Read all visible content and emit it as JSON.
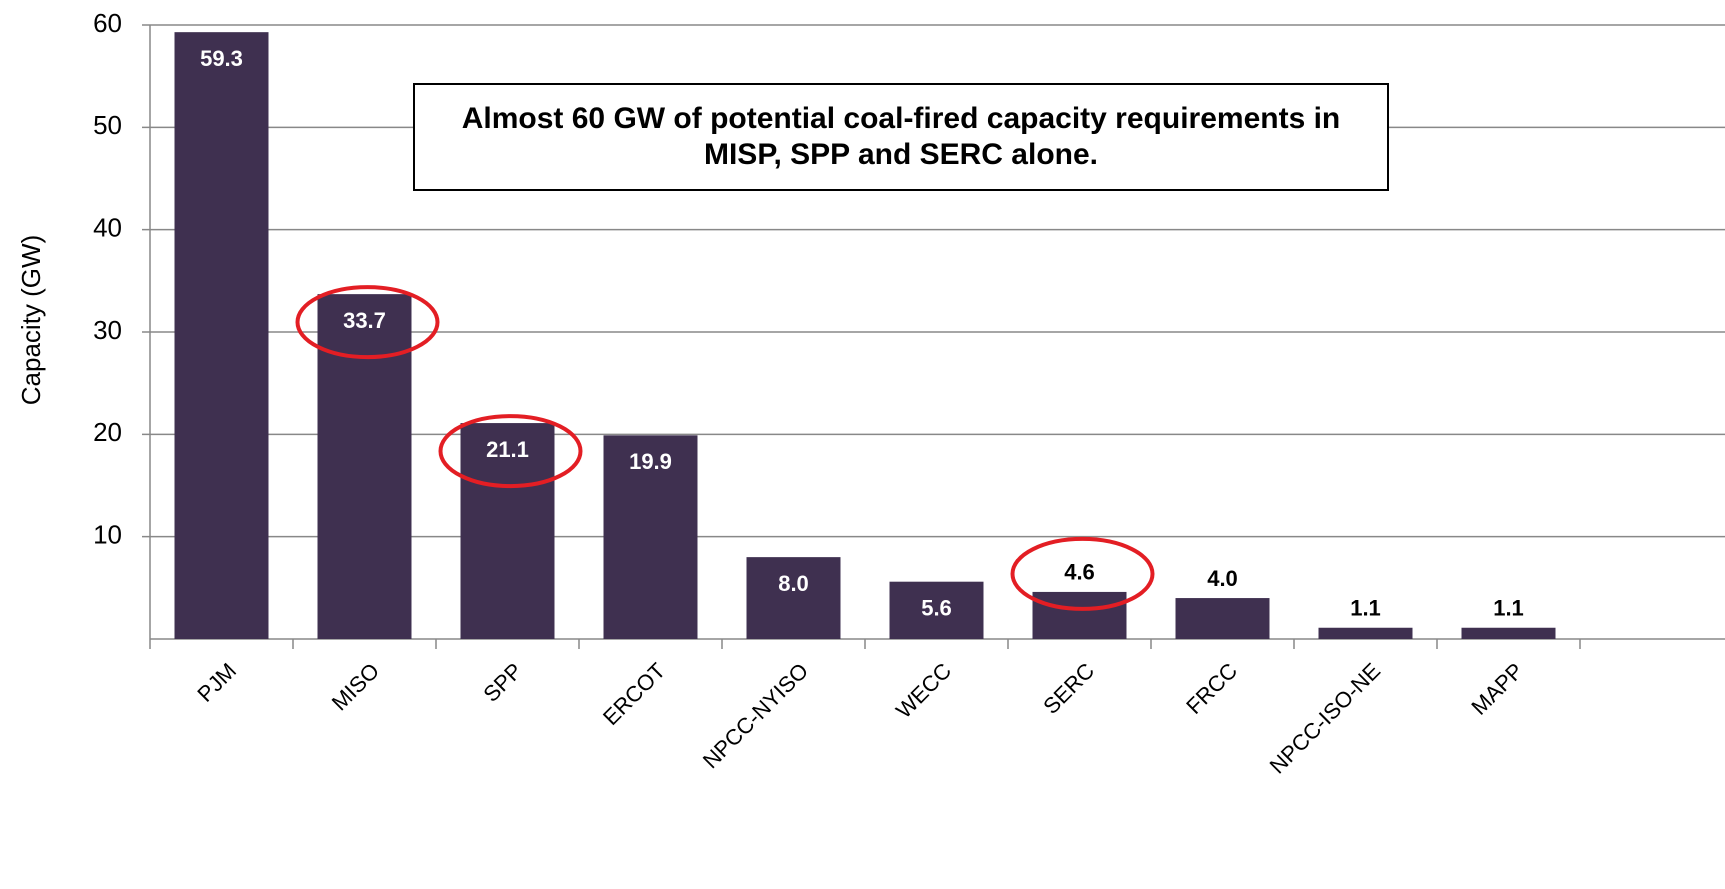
{
  "chart_data": {
    "type": "bar",
    "y_label": "Capacity (GW)",
    "annotation": "Almost 60 GW of potential coal-fired capacity requirements in MISP, SPP and SERC alone.",
    "categories": [
      "PJM",
      "MISO",
      "SPP",
      "ERCOT",
      "NPCC-NYISO",
      "WECC",
      "SERC",
      "FRCC",
      "NPCC-ISO-NE",
      "MAPP"
    ],
    "values": [
      59.3,
      33.7,
      21.1,
      19.9,
      8.0,
      5.6,
      4.6,
      4.0,
      1.1,
      1.1
    ],
    "value_labels": [
      "59.3",
      "33.7",
      "21.1",
      "19.9",
      "8.0",
      "5.6",
      "4.6",
      "4.0",
      "1.1",
      "1.1"
    ],
    "color": "#3f3050",
    "highlight": [
      1,
      2,
      6
    ],
    "highlight_color": "#e31e24",
    "ylim": [
      0,
      60
    ],
    "yticks": [
      10,
      20,
      30,
      40,
      50,
      60
    ],
    "grid": true
  }
}
